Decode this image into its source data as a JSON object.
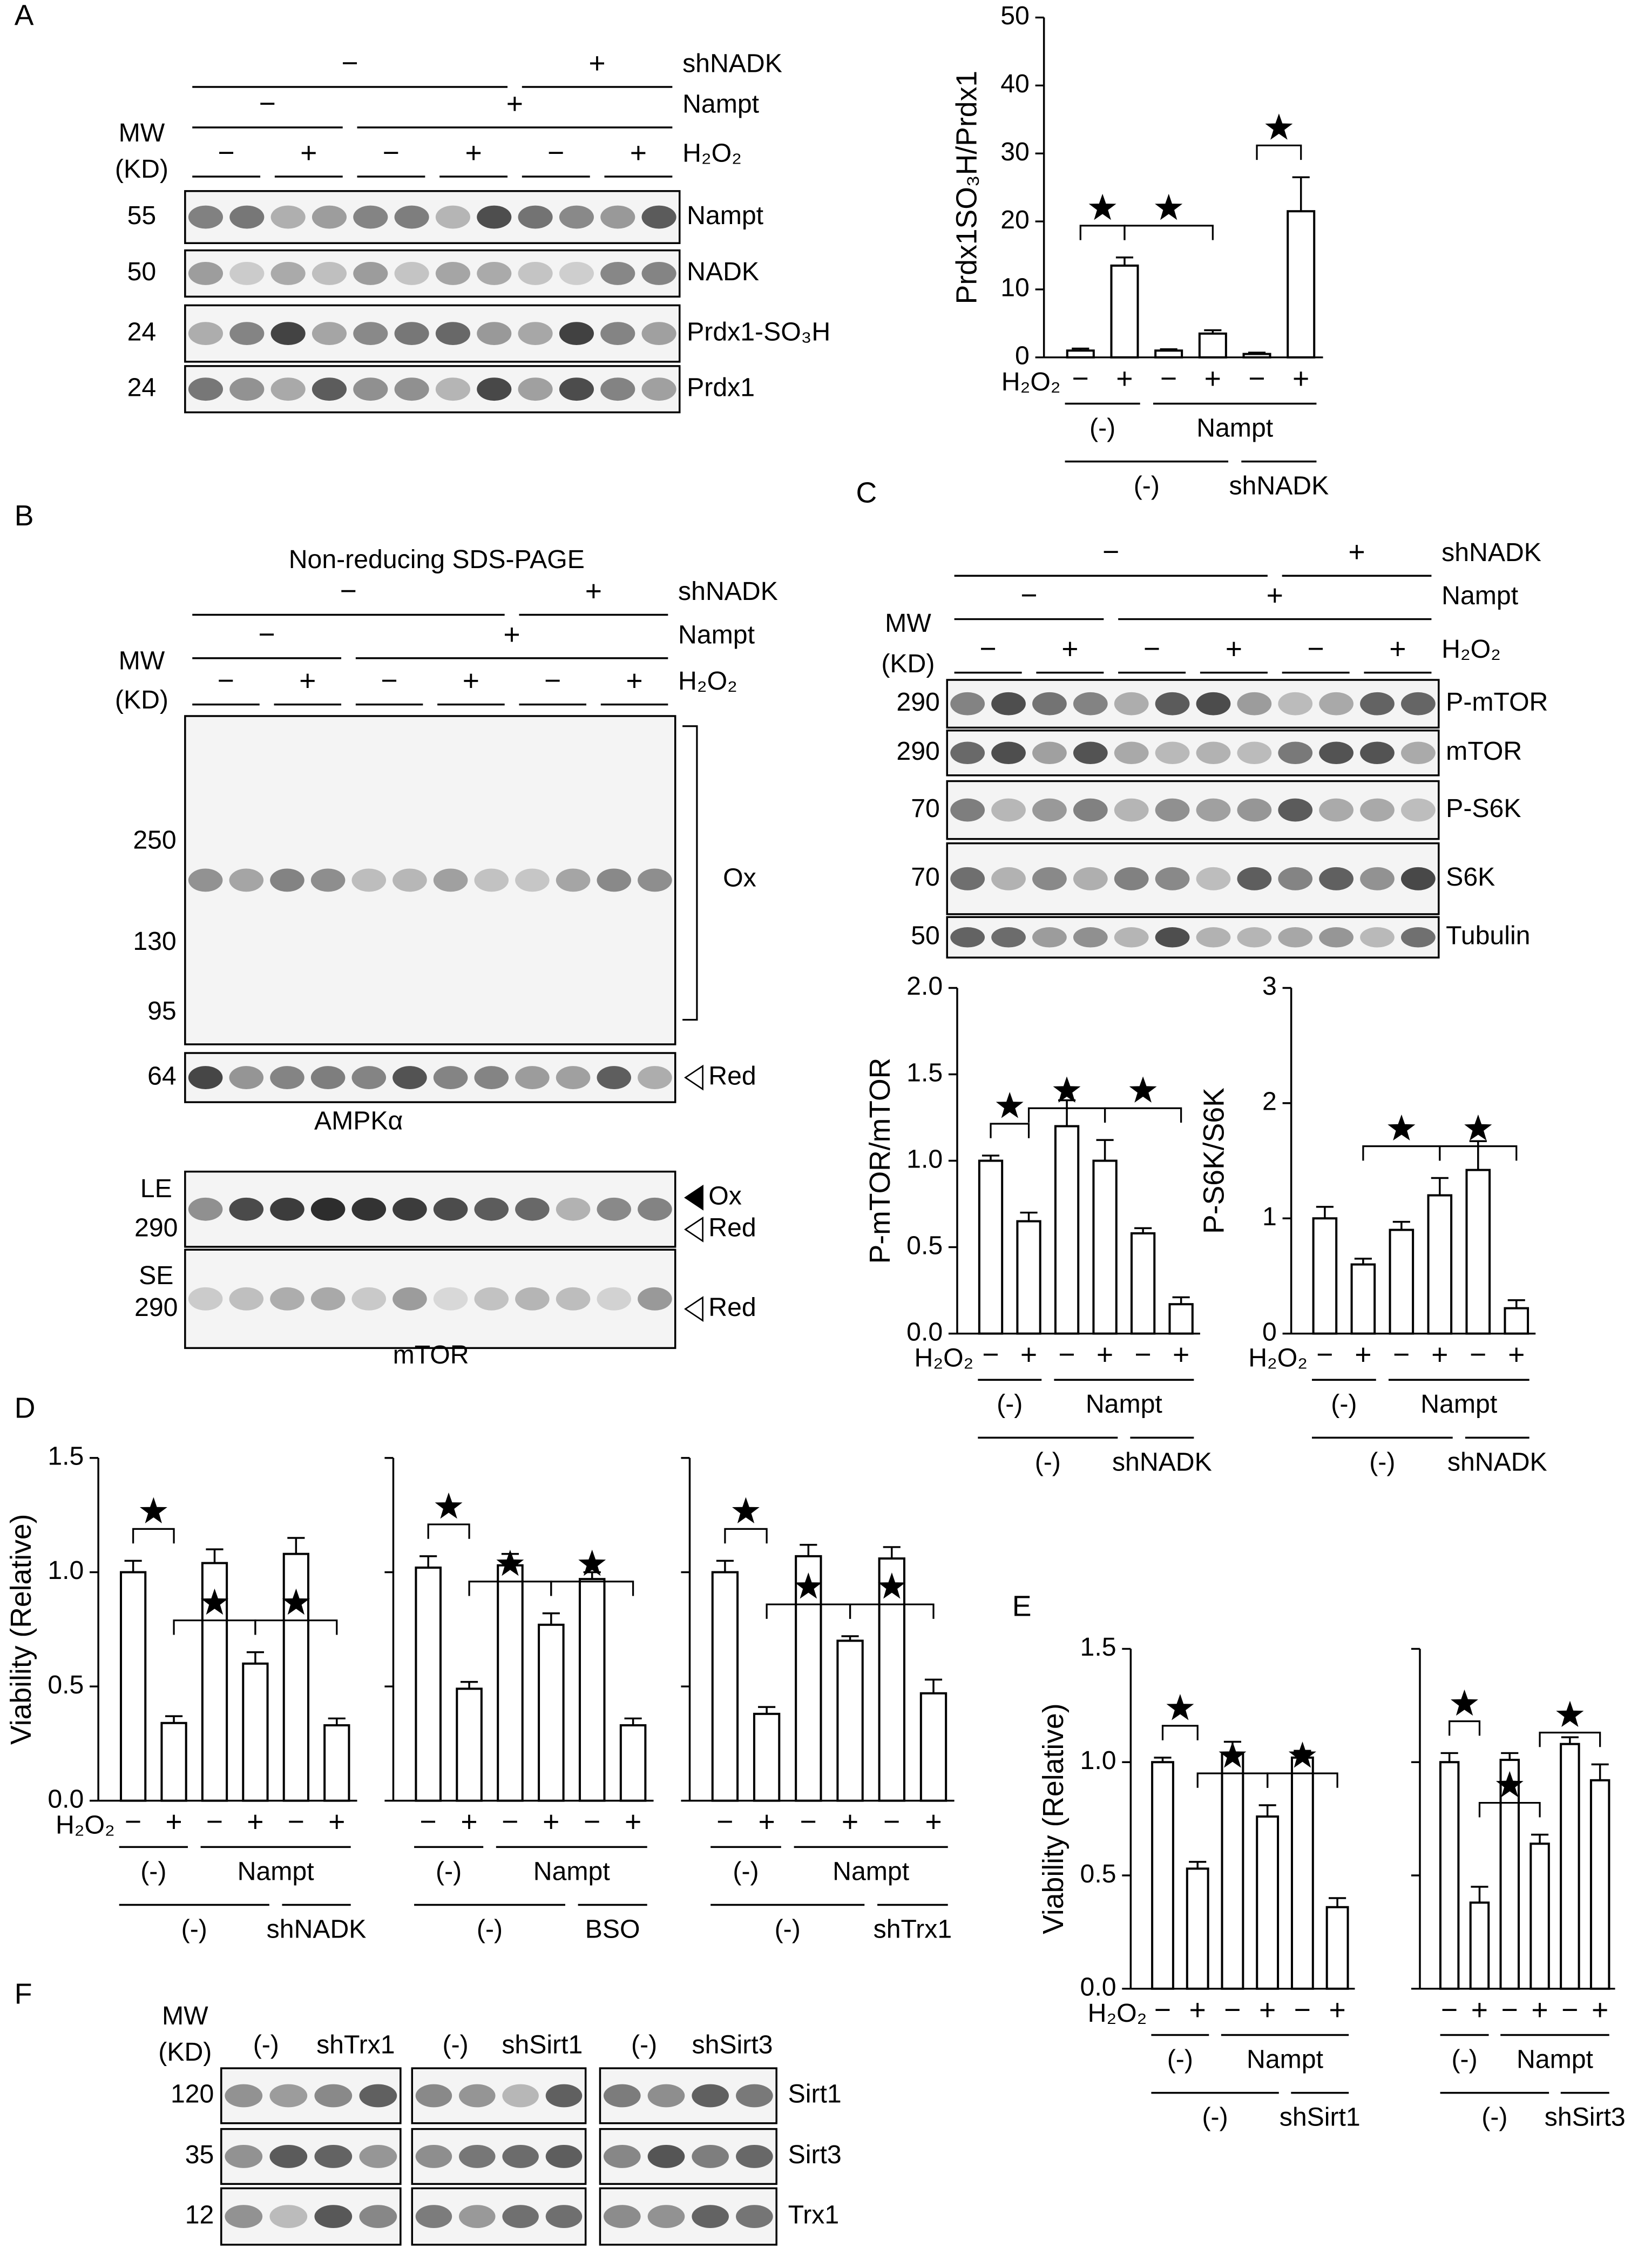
{
  "panel_labels": [
    "A",
    "B",
    "C",
    "D",
    "E",
    "F"
  ],
  "blot_A": {
    "header": [
      {
        "label": "shNADK",
        "signs": [
          "−",
          "+"
        ]
      },
      {
        "label": "Nampt",
        "signs": [
          "−",
          "+"
        ]
      },
      {
        "label": "H₂O₂",
        "signs": [
          "−",
          "+",
          "−",
          "+",
          "−",
          "+"
        ]
      }
    ],
    "mw_heading": [
      "MW",
      "(KD)"
    ],
    "rows": [
      {
        "mw": "55",
        "name": "Nampt"
      },
      {
        "mw": "50",
        "name": "NADK"
      },
      {
        "mw": "24",
        "name": "Prdx1-SO₃H"
      },
      {
        "mw": "24",
        "name": "Prdx1"
      }
    ]
  },
  "blot_B": {
    "title": "Non-reducing SDS-PAGE",
    "header": [
      {
        "label": "shNADK",
        "signs": [
          "−",
          "+"
        ]
      },
      {
        "label": "Nampt",
        "signs": [
          "−",
          "+"
        ]
      },
      {
        "label": "H₂O₂",
        "signs": [
          "−",
          "+",
          "−",
          "+",
          "−",
          "+"
        ]
      }
    ],
    "mw_heading": [
      "MW",
      "(KD)"
    ],
    "ox_panel": {
      "mw": [
        "250",
        "130",
        "95"
      ],
      "name": "Ox"
    },
    "red_row": {
      "mw": "64",
      "name": "Red"
    },
    "caption_1": "AMPKα",
    "mtor_rows": [
      {
        "exposure": "LE",
        "mw": "290",
        "names": [
          "Ox",
          "Red"
        ]
      },
      {
        "exposure": "SE",
        "mw": "290",
        "names": [
          "Red"
        ]
      }
    ],
    "caption_2": "mTOR"
  },
  "blot_C": {
    "header": [
      {
        "label": "shNADK",
        "signs": [
          "−",
          "+"
        ]
      },
      {
        "label": "Nampt",
        "signs": [
          "−",
          "+"
        ]
      },
      {
        "label": "H₂O₂",
        "signs": [
          "−",
          "+",
          "−",
          "+",
          "−",
          "+"
        ]
      }
    ],
    "mw_heading": [
      "MW",
      "(KD)"
    ],
    "rows": [
      {
        "mw": "290",
        "name": "P-mTOR"
      },
      {
        "mw": "290",
        "name": "mTOR"
      },
      {
        "mw": "70",
        "name": "P-S6K"
      },
      {
        "mw": "70",
        "name": "S6K"
      },
      {
        "mw": "50",
        "name": "Tubulin"
      }
    ]
  },
  "blot_F": {
    "mw_heading": [
      "MW",
      "(KD)"
    ],
    "groups": [
      [
        "(-)",
        "shTrx1"
      ],
      [
        "(-)",
        "shSirt1"
      ],
      [
        "(-)",
        "shSirt3"
      ]
    ],
    "rows": [
      {
        "mw": "120",
        "name": "Sirt1"
      },
      {
        "mw": "35",
        "name": "Sirt3"
      },
      {
        "mw": "12",
        "name": "Trx1"
      }
    ]
  },
  "chart_data": [
    {
      "type": "bar",
      "ylabel": "Prdx1SO₃H/Prdx1",
      "h2o2_label": "H₂O₂",
      "categories": [
        "−",
        "+",
        "−",
        "+",
        "−",
        "+"
      ],
      "values": [
        1,
        13.5,
        1,
        3.5,
        0.5,
        21.5
      ],
      "errors": [
        0.3,
        1.2,
        0.2,
        0.5,
        0.2,
        5
      ],
      "ylim": [
        0,
        50
      ],
      "yticks": [
        0,
        10,
        20,
        30,
        40,
        50
      ],
      "groups": [
        [
          "(-)",
          "Nampt"
        ],
        [
          "(-)",
          "shNADK"
        ]
      ],
      "color": "#ffffff"
    },
    {
      "type": "bar",
      "ylabel": "P-mTOR/mTOR",
      "h2o2_label": "H₂O₂",
      "categories": [
        "−",
        "+",
        "−",
        "+",
        "−",
        "+"
      ],
      "values": [
        1.0,
        0.65,
        1.2,
        1.0,
        0.58,
        0.17
      ],
      "errors": [
        0.03,
        0.05,
        0.15,
        0.12,
        0.03,
        0.04
      ],
      "ylim": [
        0,
        2
      ],
      "yticks": [
        {
          "value": 0,
          "label": "0.0"
        },
        0.5,
        {
          "value": 1,
          "label": "1.0"
        },
        1.5,
        {
          "value": 2,
          "label": "2.0"
        }
      ],
      "groups": [
        [
          "(-)",
          "Nampt"
        ],
        [
          "(-)",
          "shNADK"
        ]
      ],
      "color": "#ffffff"
    },
    {
      "type": "bar",
      "ylabel": "P-S6K/S6K",
      "h2o2_label": "H₂O₂",
      "categories": [
        "−",
        "+",
        "−",
        "+",
        "−",
        "+"
      ],
      "values": [
        1.0,
        0.6,
        0.9,
        1.2,
        1.42,
        0.22
      ],
      "errors": [
        0.1,
        0.05,
        0.07,
        0.15,
        0.25,
        0.07
      ],
      "ylim": [
        0,
        3
      ],
      "yticks": [
        0,
        1,
        2,
        3
      ],
      "groups": [
        [
          "(-)",
          "Nampt"
        ],
        [
          "(-)",
          "shNADK"
        ]
      ],
      "color": "#ffffff"
    },
    {
      "type": "bar",
      "ylabel": "Viability (Relative)",
      "h2o2_label": "H₂O₂",
      "categories": [
        "−",
        "+",
        "−",
        "+",
        "−",
        "+"
      ],
      "values": [
        1.0,
        0.34,
        1.04,
        0.6,
        1.08,
        0.33
      ],
      "errors": [
        0.05,
        0.03,
        0.06,
        0.05,
        0.07,
        0.03
      ],
      "ylim": [
        0,
        1.5
      ],
      "yticks": [
        {
          "value": 0,
          "label": "0.0"
        },
        0.5,
        {
          "value": 1,
          "label": "1.0"
        },
        1.5
      ],
      "groups": [
        [
          "(-)",
          "Nampt"
        ],
        [
          "(-)",
          "shNADK"
        ]
      ],
      "color": "#ffffff"
    },
    {
      "type": "bar",
      "categories": [
        "−",
        "+",
        "−",
        "+",
        "−",
        "+"
      ],
      "values": [
        1.02,
        0.49,
        1.03,
        0.77,
        0.97,
        0.33
      ],
      "errors": [
        0.05,
        0.03,
        0.05,
        0.05,
        0.03,
        0.03
      ],
      "ylim": [
        0,
        1.5
      ],
      "yticks": [
        0,
        0.5,
        1,
        1.5
      ],
      "tick_labels": false,
      "groups": [
        [
          "(-)",
          "Nampt"
        ],
        [
          "(-)",
          "BSO"
        ]
      ],
      "color": "#ffffff"
    },
    {
      "type": "bar",
      "categories": [
        "−",
        "+",
        "−",
        "+",
        "−",
        "+"
      ],
      "values": [
        1.0,
        0.38,
        1.07,
        0.7,
        1.06,
        0.47
      ],
      "errors": [
        0.05,
        0.03,
        0.05,
        0.02,
        0.05,
        0.06
      ],
      "ylim": [
        0,
        1.5
      ],
      "yticks": [
        0,
        0.5,
        1,
        1.5
      ],
      "tick_labels": false,
      "groups": [
        [
          "(-)",
          "Nampt"
        ],
        [
          "(-)",
          "shTrx1"
        ]
      ],
      "color": "#ffffff"
    },
    {
      "type": "bar",
      "ylabel": "Viability (Relative)",
      "h2o2_label": "H₂O₂",
      "categories": [
        "−",
        "+",
        "−",
        "+",
        "−",
        "+"
      ],
      "values": [
        1.0,
        0.53,
        1.04,
        0.76,
        1.02,
        0.36
      ],
      "errors": [
        0.02,
        0.03,
        0.05,
        0.05,
        0.03,
        0.04
      ],
      "ylim": [
        0,
        1.5
      ],
      "yticks": [
        {
          "value": 0,
          "label": "0.0"
        },
        0.5,
        {
          "value": 1,
          "label": "1.0"
        },
        1.5
      ],
      "groups": [
        [
          "(-)",
          "Nampt"
        ],
        [
          "(-)",
          "shSirt1"
        ]
      ],
      "color": "#ffffff"
    },
    {
      "type": "bar",
      "categories": [
        "−",
        "+",
        "−",
        "+",
        "−",
        "+"
      ],
      "values": [
        1.0,
        0.38,
        1.01,
        0.64,
        1.08,
        0.92
      ],
      "errors": [
        0.04,
        0.07,
        0.03,
        0.04,
        0.03,
        0.07
      ],
      "ylim": [
        0,
        1.5
      ],
      "yticks": [
        0,
        0.5,
        1,
        1.5
      ],
      "tick_labels": false,
      "groups": [
        [
          "(-)",
          "Nampt"
        ],
        [
          "(-)",
          "shSirt3"
        ]
      ],
      "color": "#ffffff"
    }
  ]
}
